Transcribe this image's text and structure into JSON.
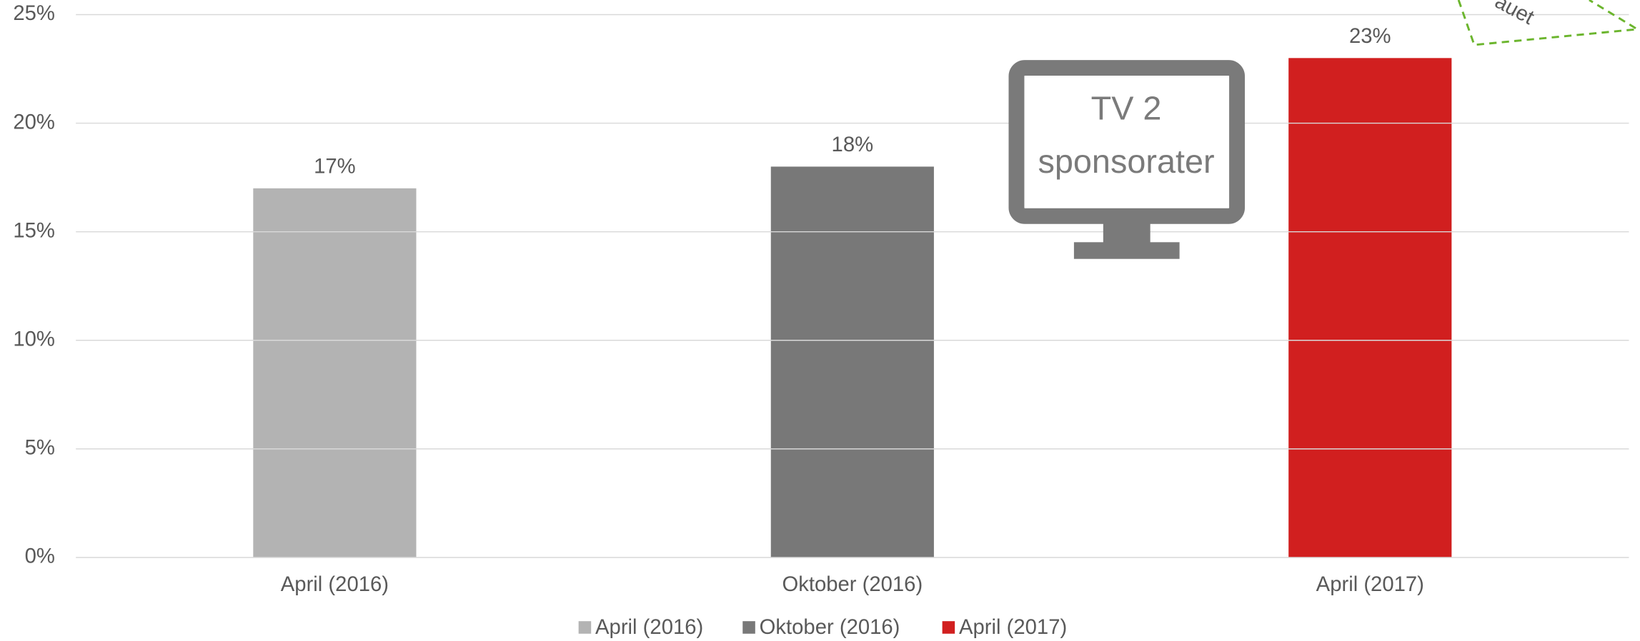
{
  "chart_data": {
    "type": "bar",
    "categories": [
      "April (2016)",
      "Oktober (2016)",
      "April (2017)"
    ],
    "values": [
      17,
      18,
      23
    ],
    "value_labels": [
      "17%",
      "18%",
      "23%"
    ],
    "colors": [
      "#b3b3b3",
      "#787878",
      "#d11f1f"
    ],
    "ylim": [
      0,
      25
    ],
    "yticks": [
      {
        "value": 0,
        "label": "0%"
      },
      {
        "value": 5,
        "label": "5%"
      },
      {
        "value": 10,
        "label": "10%"
      },
      {
        "value": 15,
        "label": "15%"
      },
      {
        "value": 20,
        "label": "20%"
      },
      {
        "value": 25,
        "label": "25%"
      }
    ],
    "grid": true,
    "legend": "bottom",
    "annotations": [
      "TV 2",
      "sponsorater",
      "auet"
    ]
  }
}
